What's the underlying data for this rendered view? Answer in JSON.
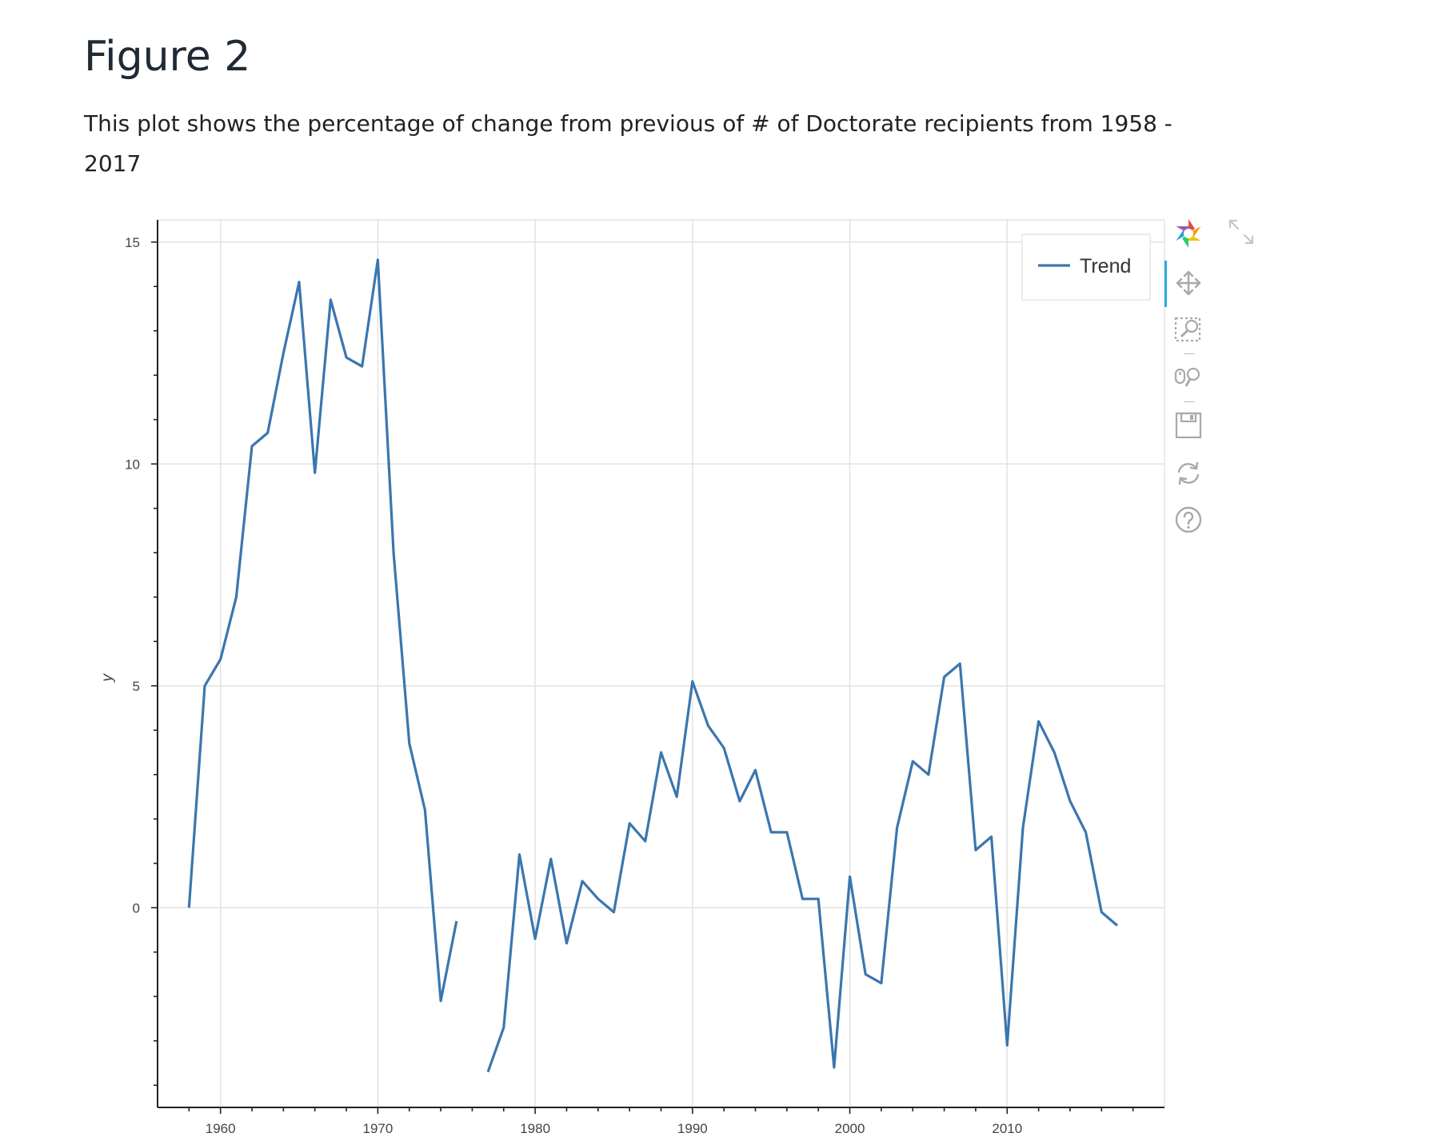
{
  "page": {
    "title": "Figure 2",
    "description": "This plot shows the percentage of change from previous of # of Doctorate recipients from 1958 - 2017"
  },
  "colors": {
    "line": "#3a76af",
    "grid": "#e3e3e3",
    "axis": "#222222",
    "legend_border": "#e6e6e6",
    "toolbar_icon": "#b0b0b0",
    "active_tool": "#26aae1"
  },
  "toolbar": {
    "tools": [
      {
        "icon": "bokeh-logo-icon",
        "interactable": true
      },
      {
        "icon": "pan-move-icon",
        "interactable": true,
        "active": true
      },
      {
        "icon": "box-zoom-icon",
        "interactable": true
      },
      {
        "icon": "wheel-zoom-icon",
        "interactable": true
      },
      {
        "icon": "save-icon",
        "interactable": true
      },
      {
        "icon": "reset-icon",
        "interactable": true
      },
      {
        "icon": "help-icon",
        "interactable": true
      }
    ],
    "expand_icon": "expand-icon"
  },
  "chart_data": {
    "type": "line",
    "title": "",
    "xlabel": "",
    "ylabel": "y",
    "xlim": [
      1956,
      2020
    ],
    "ylim": [
      -4.5,
      15.5
    ],
    "xticks": [
      1960,
      1970,
      1980,
      1990,
      2000,
      2010
    ],
    "yticks": [
      0,
      5,
      10,
      15
    ],
    "grid": true,
    "legend": {
      "position": "top-right"
    },
    "series": [
      {
        "name": "Trend",
        "x": [
          1958,
          1959,
          1960,
          1961,
          1962,
          1963,
          1964,
          1965,
          1966,
          1967,
          1968,
          1969,
          1970,
          1971,
          1972,
          1973,
          1974,
          1975,
          1976,
          1977,
          1978,
          1979,
          1980,
          1981,
          1982,
          1983,
          1984,
          1985,
          1986,
          1987,
          1988,
          1989,
          1990,
          1991,
          1992,
          1993,
          1994,
          1995,
          1996,
          1997,
          1998,
          1999,
          2000,
          2001,
          2002,
          2003,
          2004,
          2005,
          2006,
          2007,
          2008,
          2009,
          2010,
          2011,
          2012,
          2013,
          2014,
          2015,
          2016,
          2017
        ],
        "y": [
          0,
          5.0,
          5.6,
          7.0,
          10.4,
          10.7,
          12.5,
          14.1,
          9.8,
          13.7,
          12.4,
          12.2,
          14.6,
          8.0,
          3.7,
          2.2,
          -2.1,
          -0.3,
          null,
          -3.7,
          -2.7,
          1.2,
          -0.7,
          1.1,
          -0.8,
          0.6,
          0.2,
          -0.1,
          1.9,
          1.5,
          3.5,
          2.5,
          5.1,
          4.1,
          3.6,
          2.4,
          3.1,
          1.7,
          1.7,
          0.2,
          0.2,
          -3.6,
          0.7,
          -1.5,
          -1.7,
          1.8,
          3.3,
          3.0,
          5.2,
          5.5,
          1.3,
          1.6,
          -3.1,
          1.8,
          4.2,
          3.5,
          2.4,
          1.7,
          -0.1,
          -0.4
        ]
      }
    ]
  }
}
